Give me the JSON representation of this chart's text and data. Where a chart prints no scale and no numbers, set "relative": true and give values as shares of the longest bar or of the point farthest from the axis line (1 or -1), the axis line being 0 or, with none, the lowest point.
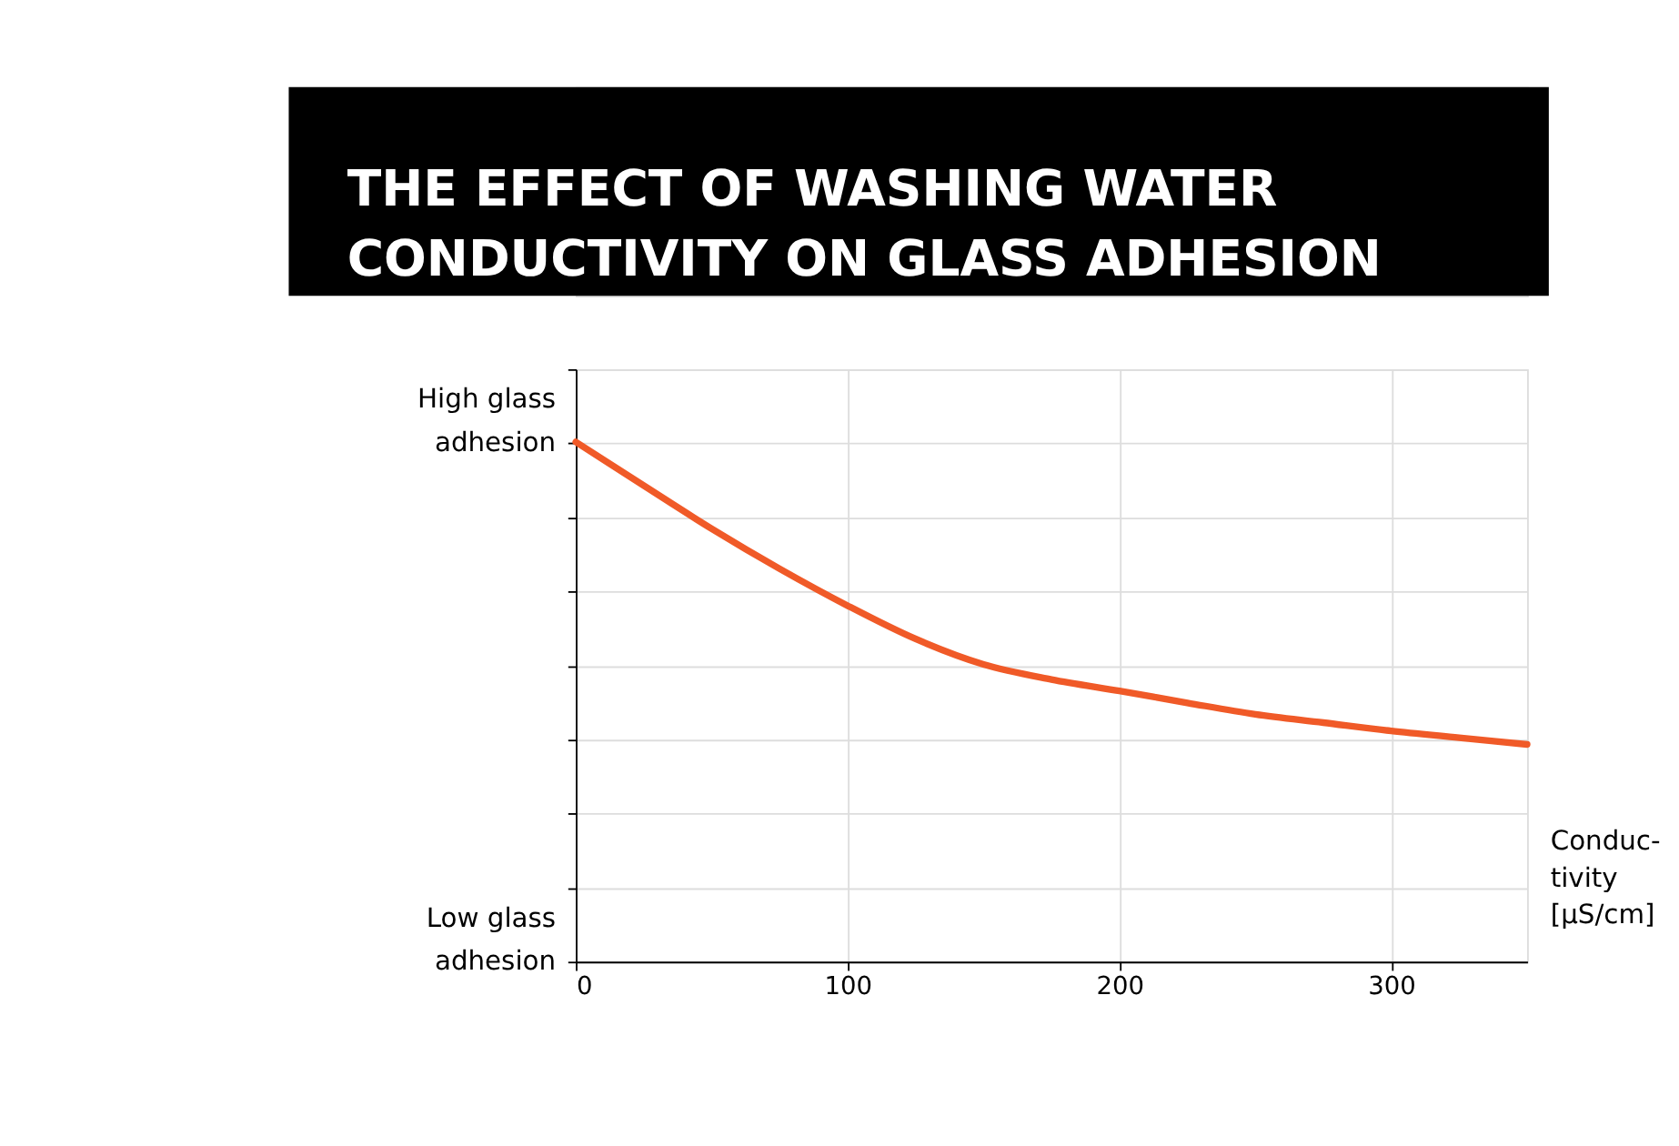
{
  "chart_data": {
    "type": "line",
    "title": "THE EFFECT OF WASHING WATER CONDUCTIVITY ON GLASS ADHESION",
    "xlabel": "Conduc-\ntivity\n[μS/cm]",
    "annotations": [
      "High glass adhesion",
      "Low glass adhesion"
    ],
    "relative": true,
    "xlim": [
      0,
      350
    ],
    "xticks": [
      0,
      100,
      200,
      300
    ],
    "grid": true,
    "x": [
      0,
      25,
      50,
      75,
      100,
      125,
      150,
      175,
      200,
      225,
      250,
      275,
      300,
      325,
      350
    ],
    "series": [
      {
        "color": "#f05a28",
        "values": [
          1,
          0.916,
          0.833,
          0.756,
          0.685,
          0.621,
          0.572,
          0.543,
          0.521,
          0.498,
          0.476,
          0.46,
          0.444,
          0.431,
          0.418
        ]
      }
    ]
  }
}
